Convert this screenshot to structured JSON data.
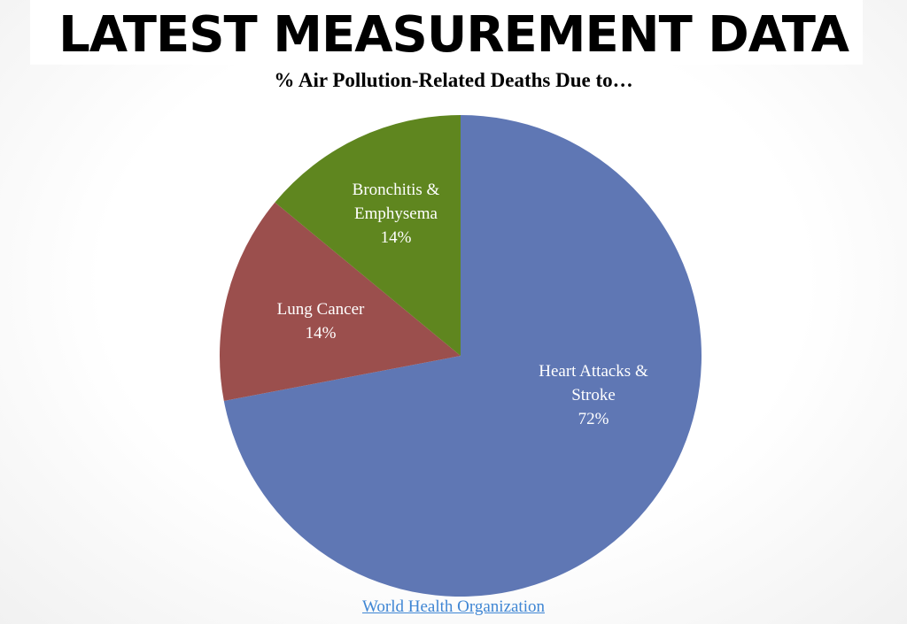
{
  "slide": {
    "title": "LATEST MEASUREMENT DATA",
    "source_link": "World Health Organization"
  },
  "chart_data": {
    "type": "pie",
    "title": "% Air Pollution-Related Deaths Due to…",
    "slices": [
      {
        "label_lines": [
          "Heart Attacks &",
          "Stroke"
        ],
        "value_label": "72%",
        "value": 72,
        "color": "#5f77b4"
      },
      {
        "label_lines": [
          "Lung Cancer"
        ],
        "value_label": "14%",
        "value": 14,
        "color": "#9b4f4d"
      },
      {
        "label_lines": [
          "Bronchitis &",
          "Emphysema"
        ],
        "value_label": "14%",
        "value": 14,
        "color": "#5f861f"
      }
    ]
  }
}
